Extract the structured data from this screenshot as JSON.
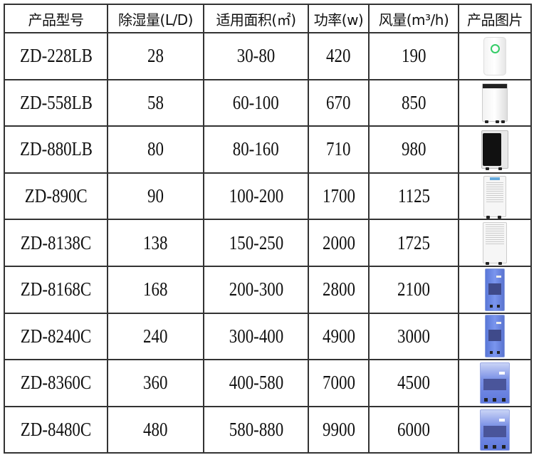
{
  "headers": [
    "产品型号",
    "除湿量(L/D)",
    "适用面积(㎡)",
    "功率(w)",
    "风量(m³/h)",
    "产品图片"
  ],
  "rows": [
    {
      "model": "ZD-228LB",
      "capacity": "28",
      "area": "30-80",
      "power": "420",
      "airflow": "190",
      "image": "white-compact-dehumidifier-green-ring"
    },
    {
      "model": "ZD-558LB",
      "capacity": "58",
      "area": "60-100",
      "power": "670",
      "airflow": "850",
      "image": "white-dehumidifier-black-top"
    },
    {
      "model": "ZD-880LB",
      "capacity": "80",
      "area": "80-160",
      "power": "710",
      "airflow": "980",
      "image": "black-front-dehumidifier"
    },
    {
      "model": "ZD-890C",
      "capacity": "90",
      "area": "100-200",
      "power": "1700",
      "airflow": "1125",
      "image": "white-grille-dehumidifier"
    },
    {
      "model": "ZD-8138C",
      "capacity": "138",
      "area": "150-250",
      "power": "2000",
      "airflow": "1725",
      "image": "white-grille-dehumidifier-large"
    },
    {
      "model": "ZD-8168C",
      "capacity": "168",
      "area": "200-300",
      "power": "2800",
      "airflow": "2100",
      "image": "blue-industrial-dehumidifier"
    },
    {
      "model": "ZD-8240C",
      "capacity": "240",
      "area": "300-400",
      "power": "4900",
      "airflow": "3000",
      "image": "blue-industrial-dehumidifier"
    },
    {
      "model": "ZD-8360C",
      "capacity": "360",
      "area": "400-580",
      "power": "7000",
      "airflow": "4500",
      "image": "blue-wide-industrial-dehumidifier"
    },
    {
      "model": "ZD-8480C",
      "capacity": "480",
      "area": "580-880",
      "power": "9900",
      "airflow": "6000",
      "image": "blue-wide-industrial-dehumidifier"
    }
  ]
}
